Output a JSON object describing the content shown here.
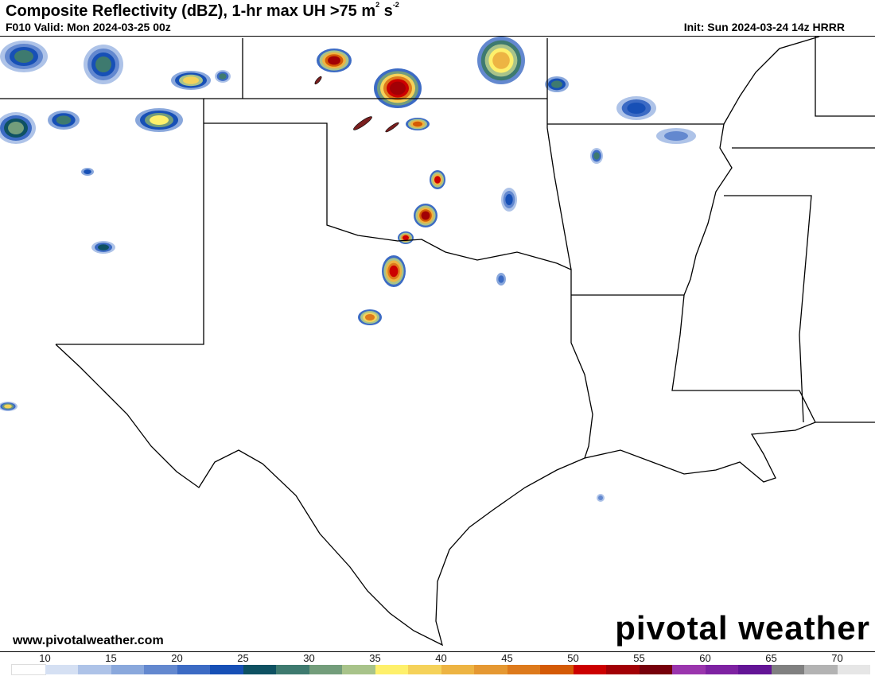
{
  "header": {
    "title": "Composite Reflectivity (dBZ), 1-hr max UH >75 m",
    "title_sup1": "2",
    "title_mid": " s",
    "title_sup2": "-2",
    "valid": "F010 Valid: Mon 2024-03-25 00z",
    "init": "Init: Sun 2024-03-24 14z HRRR"
  },
  "footer": {
    "website": "www.pivotalweather.com",
    "logo": "pivotal weather"
  },
  "colorbar": {
    "unit": "dBZ",
    "labels": [
      "10",
      "15",
      "20",
      "25",
      "30",
      "35",
      "40",
      "45",
      "50",
      "55",
      "60",
      "65",
      "70"
    ],
    "colors": [
      "#ffffff",
      "#d5e0f3",
      "#aec3e8",
      "#8aa8dc",
      "#6388cf",
      "#3c6bc4",
      "#1750b6",
      "#0e5162",
      "#3e7a6f",
      "#739d7b",
      "#a8c38a",
      "#fef06b",
      "#f5d25a",
      "#edb443",
      "#e59832",
      "#dd7a1c",
      "#d45a06",
      "#cc0000",
      "#a20005",
      "#76000b",
      "#9a35ad",
      "#7e22a2",
      "#631496",
      "#808080",
      "#b3b3b3",
      "#e6e6e6"
    ]
  },
  "map": {
    "region": "Southern Plains / Lower Mississippi Valley",
    "uh_swath_color": "#7a1f1f"
  }
}
